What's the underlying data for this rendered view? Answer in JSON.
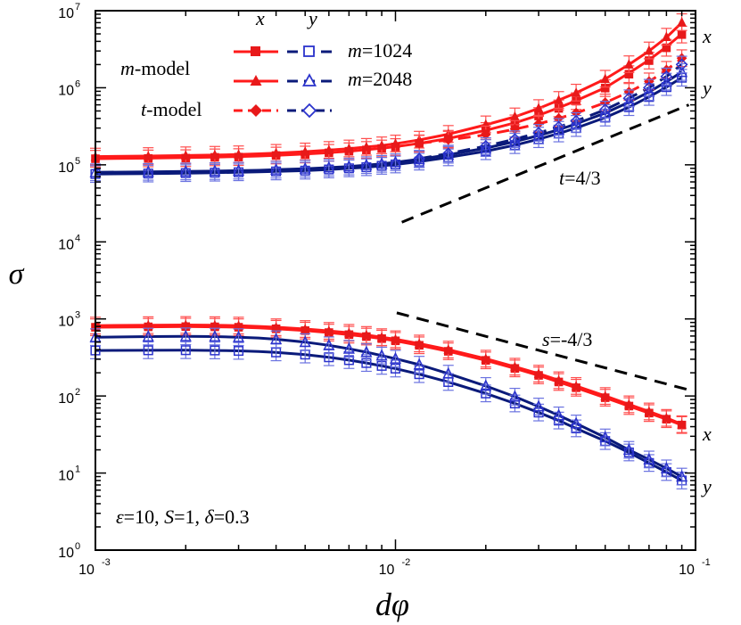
{
  "chart_data": {
    "type": "line",
    "xscale": "log",
    "yscale": "log",
    "xlim": [
      0.001,
      0.1
    ],
    "ylim": [
      1,
      10000000
    ],
    "xlabel": "dφ",
    "ylabel": "σ",
    "x_tick_labels": [
      "10",
      "10",
      "10"
    ],
    "x_tick_exponents": [
      "-3",
      "-2",
      "-1"
    ],
    "y_tick_labels": [
      "10",
      "10",
      "10",
      "10",
      "10",
      "10",
      "10",
      "10"
    ],
    "y_tick_exponents": [
      "0",
      "1",
      "2",
      "3",
      "4",
      "5",
      "6",
      "7"
    ],
    "legend": {
      "col_x": "x",
      "col_y": "y",
      "row_m_model": "-model",
      "row_m_model_var": "m",
      "row_t_model": "-model",
      "row_t_model_var": "t",
      "m1024": "=1024",
      "m2048": "=2048",
      "m_var": "m"
    },
    "annotations": {
      "t_slope": "=4/3",
      "t_var": "t",
      "s_slope": "=-4/3",
      "s_var": "s",
      "params_eps": "=10, ",
      "params_S": "=1, ",
      "params_delta": "=0.3",
      "eps_var": "ε",
      "S_var": "S",
      "delta_var": "δ",
      "right_label_x_top": "x",
      "right_label_y_top": "y",
      "right_label_x_bottom": "x",
      "right_label_y_bottom": "y"
    },
    "reference_lines": [
      {
        "name": "t=4/3",
        "x": [
          0.0105,
          0.095
        ],
        "y": [
          18000,
          600000
        ]
      },
      {
        "name": "s=-4/3",
        "x": [
          0.0101,
          0.095
        ],
        "y": [
          1200,
          120
        ]
      }
    ],
    "x": [
      0.001,
      0.0015,
      0.002,
      0.0025,
      0.003,
      0.0035,
      0.004,
      0.005,
      0.006,
      0.007,
      0.008,
      0.009,
      0.01,
      0.012,
      0.015,
      0.02,
      0.025,
      0.03,
      0.035,
      0.04,
      0.05,
      0.06,
      0.07,
      0.08,
      0.09
    ],
    "series": [
      {
        "name": "m1024-x-curve",
        "color": "#ff1a1a",
        "style": "solid",
        "values": [
          120000,
          122000,
          124000,
          126000,
          128000,
          130000,
          133000,
          138000,
          144000,
          150000,
          157000,
          164000,
          172000,
          190000,
          220000,
          280000,
          350000,
          440000,
          550000,
          680000,
          1000000,
          1550000,
          2300000,
          3400000,
          5000000
        ]
      },
      {
        "name": "m2048-x-curve",
        "color": "#ff1a1a",
        "style": "solid",
        "values": [
          128000,
          130000,
          132000,
          134000,
          136000,
          139000,
          142000,
          148000,
          155000,
          162000,
          170000,
          178000,
          188000,
          210000,
          250000,
          330000,
          420000,
          540000,
          690000,
          860000,
          1300000,
          2000000,
          3000000,
          4500000,
          7000000
        ]
      },
      {
        "name": "t-x-curve",
        "color": "#ff1a1a",
        "style": "dashed",
        "values": [
          null,
          null,
          null,
          null,
          null,
          null,
          null,
          null,
          null,
          null,
          null,
          null,
          null,
          190000,
          210000,
          245000,
          290000,
          340000,
          400000,
          470000,
          640000,
          880000,
          1200000,
          1700000,
          2400000
        ]
      },
      {
        "name": "m1024-y-curve",
        "color": "#0a1a7a",
        "style": "solid",
        "values": [
          76000,
          77000,
          78000,
          79000,
          80000,
          81000,
          82000,
          84000,
          87000,
          90000,
          93000,
          97000,
          101000,
          110000,
          125000,
          150000,
          180000,
          215000,
          255000,
          300000,
          410000,
          560000,
          760000,
          1020000,
          1350000
        ]
      },
      {
        "name": "m2048-y-curve",
        "color": "#0a1a7a",
        "style": "solid",
        "values": [
          80000,
          81000,
          82000,
          83000,
          84000,
          85000,
          86500,
          89000,
          92000,
          95000,
          99000,
          103000,
          108000,
          118000,
          135000,
          165000,
          200000,
          240000,
          285000,
          340000,
          470000,
          650000,
          880000,
          1200000,
          1600000
        ]
      },
      {
        "name": "t-y-curve",
        "color": "#0a1a7a",
        "style": "dashed",
        "values": [
          null,
          null,
          null,
          null,
          null,
          null,
          null,
          null,
          null,
          null,
          null,
          null,
          null,
          120000,
          140000,
          175000,
          215000,
          260000,
          310000,
          370000,
          520000,
          730000,
          1000000,
          1400000,
          2000000
        ]
      },
      {
        "name": "sigma-x-m2048",
        "color": "#ff1a1a",
        "style": "solid",
        "values": [
          820,
          830,
          835,
          830,
          820,
          800,
          780,
          740,
          700,
          660,
          620,
          580,
          545,
          480,
          400,
          305,
          240,
          195,
          160,
          135,
          100,
          78,
          63,
          52,
          43
        ]
      },
      {
        "name": "sigma-x-m1024",
        "color": "#ff1a1a",
        "style": "solid",
        "values": [
          780,
          790,
          795,
          790,
          780,
          765,
          745,
          705,
          665,
          625,
          590,
          555,
          520,
          455,
          380,
          290,
          228,
          185,
          152,
          128,
          95,
          74,
          60,
          50,
          42
        ]
      },
      {
        "name": "sigma-y-m2048",
        "color": "#0a1a7a",
        "style": "solid",
        "values": [
          580,
          590,
          595,
          590,
          580,
          565,
          545,
          500,
          455,
          410,
          370,
          335,
          305,
          255,
          195,
          135,
          98,
          73,
          56,
          44,
          29,
          20,
          15,
          11.5,
          9
        ]
      },
      {
        "name": "sigma-y-m1024",
        "color": "#0a1a7a",
        "style": "solid",
        "values": [
          390,
          392,
          393,
          390,
          385,
          378,
          368,
          345,
          318,
          292,
          268,
          246,
          227,
          192,
          152,
          108,
          80,
          61,
          48,
          38,
          26,
          18.5,
          13.5,
          10.3,
          8
        ]
      }
    ],
    "markers": {
      "x": [
        0.001,
        0.0015,
        0.002,
        0.0025,
        0.003,
        0.004,
        0.005,
        0.006,
        0.007,
        0.008,
        0.009,
        0.01,
        0.012,
        0.015,
        0.02,
        0.025,
        0.03,
        0.035,
        0.04,
        0.05,
        0.06,
        0.07,
        0.08,
        0.09
      ],
      "groups": [
        {
          "name": "m1024-x-squares",
          "shape": "square-filled",
          "color": "#e8191a",
          "values": [
            120000,
            121000,
            122000,
            125000,
            126000,
            132000,
            136000,
            143000,
            150000,
            156000,
            163000,
            170000,
            188000,
            218000,
            275000,
            345000,
            430000,
            540000,
            670000,
            990000,
            1500000,
            2250000,
            3300000,
            4900000
          ]
        },
        {
          "name": "m2048-x-triangles",
          "shape": "triangle-filled",
          "color": "#e8191a",
          "values": [
            128000,
            130000,
            133000,
            135000,
            137000,
            143000,
            149000,
            156000,
            163000,
            171000,
            179000,
            189000,
            212000,
            252000,
            335000,
            425000,
            545000,
            695000,
            865000,
            1310000,
            2020000,
            3050000,
            4600000,
            7100000
          ]
        },
        {
          "name": "t-x-diamonds",
          "shape": "diamond-filled",
          "color": "#e8191a",
          "values": [
            null,
            null,
            null,
            null,
            null,
            null,
            null,
            null,
            null,
            null,
            null,
            null,
            190000,
            212000,
            248000,
            292000,
            342000,
            402000,
            472000,
            645000,
            885000,
            1210000,
            1710000,
            2420000
          ]
        },
        {
          "name": "m1024-y-squares",
          "shape": "square-open",
          "color": "#2b33cc",
          "values": [
            76000,
            77000,
            78000,
            79000,
            80000,
            82000,
            84000,
            87000,
            90000,
            93000,
            97000,
            101000,
            110000,
            125000,
            150000,
            180000,
            215000,
            255000,
            300000,
            410000,
            560000,
            760000,
            1020000,
            1350000
          ]
        },
        {
          "name": "m2048-y-triangles",
          "shape": "triangle-open",
          "color": "#2b33cc",
          "values": [
            80000,
            81000,
            82000,
            83000,
            84000,
            86500,
            89000,
            92000,
            95000,
            99000,
            103000,
            108000,
            118000,
            135000,
            165000,
            200000,
            240000,
            285000,
            340000,
            470000,
            650000,
            880000,
            1200000,
            1600000
          ]
        },
        {
          "name": "t-y-diamonds",
          "shape": "diamond-open",
          "color": "#2b33cc",
          "values": [
            null,
            null,
            null,
            null,
            null,
            null,
            null,
            null,
            null,
            null,
            null,
            null,
            120000,
            140000,
            175000,
            215000,
            260000,
            310000,
            370000,
            520000,
            730000,
            1000000,
            1400000,
            2000000
          ]
        },
        {
          "name": "sigma-x-squares",
          "shape": "square-filled",
          "color": "#e8191a",
          "values": [
            780,
            790,
            795,
            790,
            780,
            745,
            705,
            665,
            625,
            590,
            555,
            520,
            455,
            380,
            290,
            228,
            185,
            152,
            128,
            95,
            74,
            60,
            50,
            42
          ]
        },
        {
          "name": "sigma-x-triangles",
          "shape": "triangle-filled",
          "color": "#e8191a",
          "values": [
            820,
            830,
            835,
            830,
            820,
            780,
            740,
            700,
            660,
            620,
            580,
            545,
            480,
            400,
            305,
            240,
            195,
            160,
            135,
            100,
            78,
            63,
            52,
            43
          ]
        },
        {
          "name": "sigma-y-squares",
          "shape": "square-open",
          "color": "#2b33cc",
          "values": [
            390,
            392,
            393,
            390,
            385,
            368,
            345,
            318,
            292,
            268,
            246,
            227,
            192,
            152,
            108,
            80,
            61,
            48,
            38,
            26,
            18.5,
            13.5,
            10.3,
            8
          ]
        },
        {
          "name": "sigma-y-triangles",
          "shape": "triangle-open",
          "color": "#2b33cc",
          "values": [
            580,
            590,
            595,
            590,
            580,
            545,
            500,
            455,
            410,
            370,
            335,
            305,
            255,
            195,
            135,
            98,
            73,
            56,
            44,
            29,
            20,
            15,
            11.5,
            9
          ]
        }
      ]
    }
  }
}
